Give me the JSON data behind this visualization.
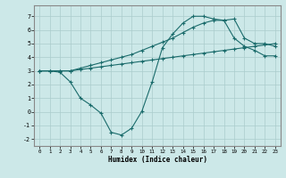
{
  "xlabel": "Humidex (Indice chaleur)",
  "bg_color": "#cce8e8",
  "grid_color": "#aacccc",
  "line_color": "#1a6b6b",
  "xlim": [
    -0.5,
    23.5
  ],
  "ylim": [
    -2.5,
    7.8
  ],
  "xticks": [
    0,
    1,
    2,
    3,
    4,
    5,
    6,
    7,
    8,
    9,
    10,
    11,
    12,
    13,
    14,
    15,
    16,
    17,
    18,
    19,
    20,
    21,
    22,
    23
  ],
  "yticks": [
    -2,
    -1,
    0,
    1,
    2,
    3,
    4,
    5,
    6,
    7
  ],
  "line1_x": [
    0,
    1,
    2,
    3,
    4,
    5,
    6,
    7,
    8,
    9,
    10,
    11,
    12,
    13,
    14,
    15,
    16,
    17,
    18,
    19,
    20,
    21,
    22,
    23
  ],
  "line1_y": [
    3.0,
    3.0,
    3.0,
    3.0,
    3.1,
    3.2,
    3.3,
    3.4,
    3.5,
    3.6,
    3.7,
    3.8,
    3.9,
    4.0,
    4.1,
    4.2,
    4.3,
    4.4,
    4.5,
    4.6,
    4.7,
    4.8,
    4.9,
    5.0
  ],
  "line2_x": [
    0,
    1,
    2,
    3,
    4,
    5,
    6,
    7,
    8,
    9,
    10,
    11,
    12,
    13,
    14,
    15,
    16,
    17,
    18,
    19,
    20,
    21,
    22,
    23
  ],
  "line2_y": [
    3.0,
    3.0,
    3.0,
    3.0,
    3.2,
    3.4,
    3.6,
    3.8,
    4.0,
    4.2,
    4.5,
    4.8,
    5.1,
    5.4,
    5.8,
    6.2,
    6.5,
    6.7,
    6.7,
    6.8,
    5.4,
    5.0,
    5.0,
    4.8
  ],
  "line3_x": [
    0,
    1,
    2,
    3,
    4,
    5,
    6,
    7,
    8,
    9,
    10,
    11,
    12,
    13,
    14,
    15,
    16,
    17,
    18,
    19,
    20,
    21,
    22,
    23
  ],
  "line3_y": [
    3.0,
    3.0,
    2.9,
    2.2,
    1.0,
    0.5,
    -0.1,
    -1.5,
    -1.7,
    -1.2,
    0.05,
    2.2,
    4.7,
    5.7,
    6.5,
    7.0,
    7.0,
    6.8,
    6.7,
    5.4,
    4.8,
    4.5,
    4.1,
    4.1
  ]
}
